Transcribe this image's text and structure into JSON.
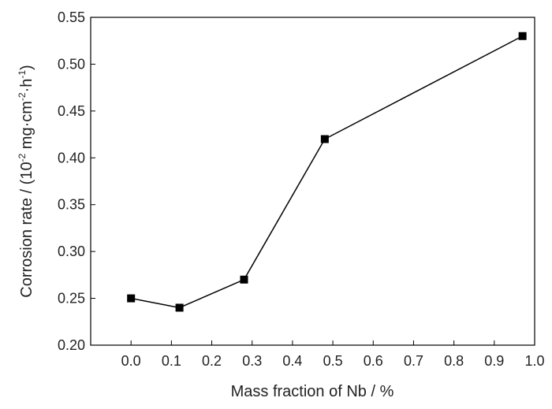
{
  "chart_data": {
    "type": "line",
    "title": "",
    "xlabel": "Mass fraction of Nb / %",
    "ylabel": {
      "prefix": "Corrosion rate / (10",
      "exp1": "-2",
      "mid1": " mg·cm",
      "exp2": "-2",
      "mid2": "·h",
      "exp3": "-1",
      "suffix": ")"
    },
    "xlim": [
      -0.1,
      1.0
    ],
    "ylim": [
      0.2,
      0.55
    ],
    "x_ticks": [
      "0.0",
      "0.1",
      "0.2",
      "0.3",
      "0.4",
      "0.5",
      "0.6",
      "0.7",
      "0.8",
      "0.9",
      "1.0"
    ],
    "y_ticks": [
      "0.20",
      "0.25",
      "0.30",
      "0.35",
      "0.40",
      "0.45",
      "0.50",
      "0.55"
    ],
    "grid": false,
    "legend": "none",
    "series": [
      {
        "x": [
          0.0,
          0.12,
          0.28,
          0.48,
          0.97
        ],
        "y": [
          0.25,
          0.24,
          0.27,
          0.42,
          0.53
        ],
        "color": "#000000",
        "marker": "square"
      }
    ]
  }
}
